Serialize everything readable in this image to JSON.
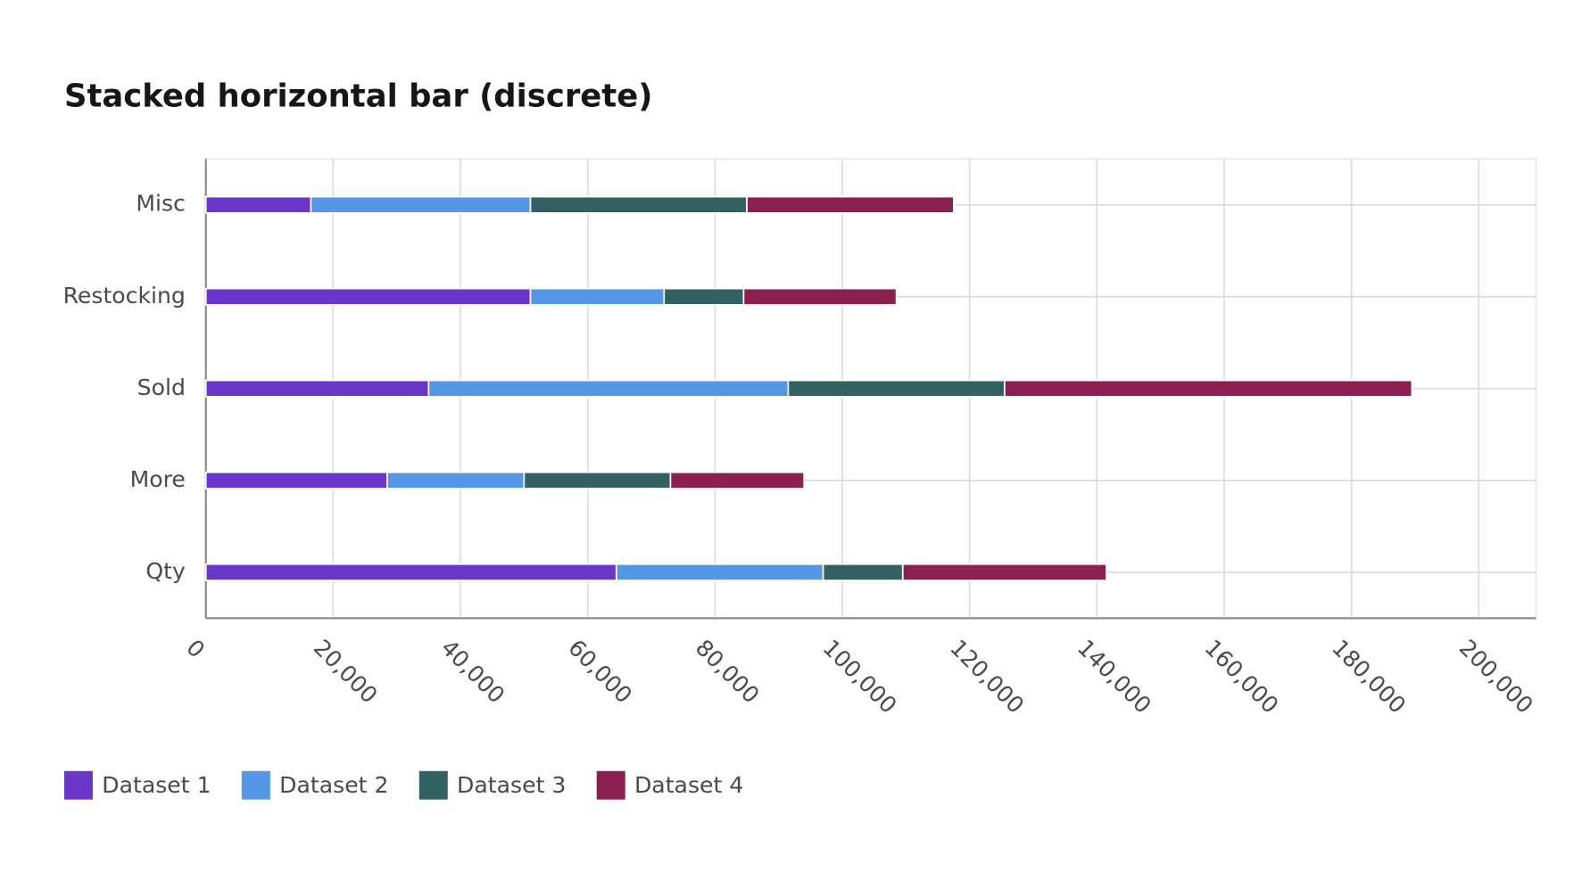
{
  "chart_data": {
    "type": "stacked_hbar",
    "title": "Stacked horizontal bar (discrete)",
    "categories": [
      "Misc",
      "Restocking",
      "Sold",
      "More",
      "Qty"
    ],
    "series": [
      {
        "name": "Dataset 1",
        "color": "#6a35c9",
        "values": [
          16500,
          51000,
          35000,
          28500,
          64500
        ]
      },
      {
        "name": "Dataset 2",
        "color": "#5596e6",
        "values": [
          34500,
          21000,
          56500,
          21500,
          32500
        ]
      },
      {
        "name": "Dataset 3",
        "color": "#336060",
        "values": [
          34000,
          12500,
          34000,
          23000,
          12500
        ]
      },
      {
        "name": "Dataset 4",
        "color": "#8b1f4f",
        "values": [
          32500,
          24000,
          64000,
          21000,
          32000
        ]
      }
    ],
    "xlim": [
      0,
      209000
    ],
    "xticks": [
      0,
      {
        "value": 20000,
        "label": "20,000"
      },
      {
        "value": 40000,
        "label": "40,000"
      },
      {
        "value": 60000,
        "label": "60,000"
      },
      {
        "value": 80000,
        "label": "80,000"
      },
      {
        "value": 100000,
        "label": "100,000"
      },
      {
        "value": 120000,
        "label": "120,000"
      },
      {
        "value": 140000,
        "label": "140,000"
      },
      {
        "value": 160000,
        "label": "160,000"
      },
      {
        "value": 180000,
        "label": "180,000"
      },
      {
        "value": 200000,
        "label": "200,000"
      }
    ],
    "grid": true
  }
}
